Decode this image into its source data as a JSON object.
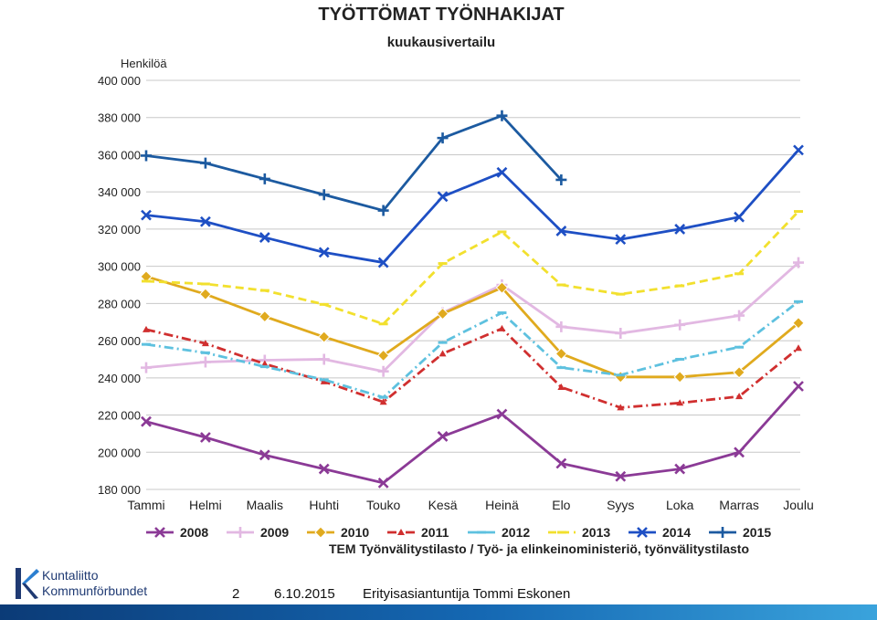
{
  "chart_data": {
    "type": "line",
    "title": "TYÖTTÖMAT TYÖNHAKIJAT",
    "subtitle": "kuukausivertailu",
    "ylabel": "Henkilöä",
    "xlabel": "",
    "ylim": [
      180000,
      400000
    ],
    "yticks": [
      180000,
      200000,
      220000,
      240000,
      260000,
      280000,
      300000,
      320000,
      340000,
      360000,
      380000,
      400000
    ],
    "ytick_labels": [
      "180 000",
      "200 000",
      "220 000",
      "240 000",
      "260 000",
      "280 000",
      "300 000",
      "320 000",
      "340 000",
      "360 000",
      "380 000",
      "400 000"
    ],
    "categories": [
      "Tammi",
      "Helmi",
      "Maalis",
      "Huhti",
      "Touko",
      "Kesä",
      "Heinä",
      "Elo",
      "Syys",
      "Loka",
      "Marras",
      "Joulu"
    ],
    "grid": true,
    "legend_position": "bottom",
    "source": "TEM Työnvälitystilasto / Työ- ja elinkeinoministeriö, työnvälitystilasto",
    "series": [
      {
        "name": "2008",
        "color": "#8b3a96",
        "marker": "x",
        "dash": "solid",
        "values": [
          216500,
          208000,
          198500,
          191000,
          183500,
          208500,
          220500,
          194000,
          187000,
          191000,
          200000,
          235500
        ]
      },
      {
        "name": "2009",
        "color": "#e2b8e2",
        "marker": "plus",
        "dash": "solid",
        "values": [
          245500,
          248500,
          249500,
          250000,
          243500,
          275000,
          290000,
          267500,
          264000,
          268500,
          273500,
          302000
        ]
      },
      {
        "name": "2010",
        "color": "#e0aa1e",
        "marker": "diamond",
        "dash": "solid",
        "values": [
          294500,
          285000,
          273000,
          262000,
          252000,
          274500,
          288500,
          253000,
          240500,
          240500,
          243000,
          269500
        ]
      },
      {
        "name": "2011",
        "color": "#d02f2f",
        "marker": "triangle",
        "dash": "dashdot",
        "values": [
          266000,
          258500,
          247500,
          238000,
          227000,
          253000,
          266500,
          235000,
          224000,
          226500,
          230000,
          256000
        ]
      },
      {
        "name": "2012",
        "color": "#5ec1df",
        "marker": "bar",
        "dash": "dashdot",
        "values": [
          258000,
          253500,
          246000,
          239000,
          229500,
          259000,
          275000,
          245500,
          241500,
          250000,
          256500,
          281000
        ]
      },
      {
        "name": "2013",
        "color": "#f2e02e",
        "marker": "bar",
        "dash": "dashed",
        "values": [
          292000,
          290500,
          287000,
          279500,
          269000,
          301500,
          318500,
          290000,
          285000,
          289500,
          296000,
          329500
        ]
      },
      {
        "name": "2014",
        "color": "#1e4fc4",
        "marker": "x",
        "dash": "solid",
        "values": [
          327500,
          324000,
          315500,
          307500,
          302000,
          337500,
          350500,
          319000,
          314500,
          320000,
          326500,
          362500
        ]
      },
      {
        "name": "2015",
        "color": "#1c5aa0",
        "marker": "plus",
        "dash": "solid",
        "values": [
          359500,
          355500,
          347000,
          338500,
          330000,
          369000,
          381000,
          346500,
          null,
          null,
          null,
          null
        ]
      }
    ]
  },
  "footer": {
    "logo_line1": "Kuntaliitto",
    "logo_line2": "Kommunförbundet",
    "page_number": "2",
    "date": "6.10.2015",
    "author": "Erityisasiantuntija Tommi Eskonen"
  },
  "colors": {
    "footer_band": "#1568b3",
    "logo": "#1f3a73"
  }
}
